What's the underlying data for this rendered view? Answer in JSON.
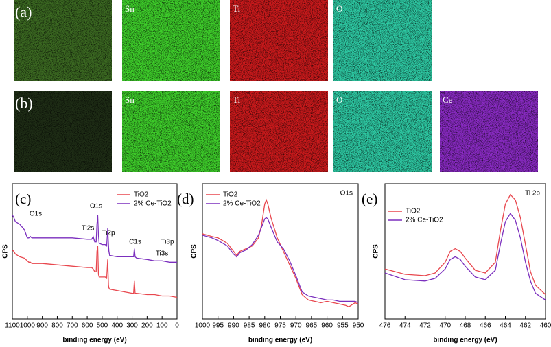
{
  "maps": [
    {
      "label": "(a)",
      "panels": [
        "Sn",
        "Ti",
        "O"
      ]
    },
    {
      "label": "(b)",
      "panels": [
        "Sn",
        "Ti",
        "O",
        "Ce"
      ]
    }
  ],
  "chart_data": [
    {
      "type": "line",
      "label": "(c)",
      "xlabel": "binding energy (eV)",
      "ylabel": "CPS",
      "x": [
        1100,
        1090,
        1080,
        1050,
        1020,
        1000,
        990,
        980,
        970,
        950,
        900,
        800,
        700,
        600,
        570,
        560,
        550,
        540,
        535,
        530,
        525,
        520,
        500,
        480,
        470,
        463,
        458,
        455,
        450,
        400,
        350,
        300,
        290,
        285,
        280,
        270,
        200,
        150,
        100,
        50,
        0
      ],
      "series": [
        {
          "name": "TiO2",
          "color": "#e8474e",
          "values": [
            51,
            50,
            48,
            46,
            45,
            43,
            42,
            42,
            41,
            41,
            41,
            40,
            39,
            38,
            38,
            37,
            35,
            35,
            50,
            54,
            33,
            31,
            31,
            31,
            30,
            44,
            25,
            23,
            22,
            21,
            20,
            19,
            19,
            28,
            19,
            19,
            18,
            18,
            17,
            17,
            16
          ]
        },
        {
          "name": "2% Ce-TiO2",
          "color": "#7b2fbe",
          "values": [
            77,
            75,
            72,
            70,
            66,
            60,
            60,
            61,
            60,
            60,
            60,
            60,
            60,
            59,
            59,
            61,
            57,
            57,
            70,
            77,
            62,
            56,
            55,
            55,
            54,
            67,
            55,
            50,
            47,
            46,
            46,
            46,
            46,
            52,
            46,
            45,
            44,
            43,
            43,
            42,
            42
          ]
        }
      ],
      "annotations": [
        "O1s",
        "O1s",
        "Ti2s",
        "Ti2p",
        "C1s",
        "Ti3p",
        "Ti3s"
      ],
      "xlim": [
        1100,
        0
      ],
      "xticks": [
        1100,
        1000,
        900,
        800,
        700,
        600,
        500,
        400,
        300,
        200,
        100,
        0
      ],
      "ylim": [
        0,
        100
      ]
    },
    {
      "type": "line",
      "label": "(d)",
      "title": "O1s",
      "xlabel": "binding energy (eV)",
      "ylabel": "CPS",
      "x": [
        1000,
        997,
        995,
        992,
        990,
        989,
        988,
        986,
        984,
        982,
        981,
        980,
        979.5,
        979,
        978,
        976,
        974,
        972,
        970,
        968,
        966,
        964,
        962,
        960,
        958,
        956,
        954,
        953,
        951,
        950
      ],
      "series": [
        {
          "name": "TiO2",
          "color": "#e8474e",
          "values": [
            63,
            61,
            60,
            56,
            50,
            47,
            50,
            52,
            54,
            60,
            70,
            85,
            88,
            85,
            75,
            60,
            50,
            40,
            30,
            18,
            14,
            13,
            12,
            13,
            12,
            11,
            10,
            9,
            12,
            11
          ]
        },
        {
          "name": "2% Ce-TiO2",
          "color": "#7b2fbe",
          "values": [
            62,
            60,
            58,
            54,
            48,
            46,
            49,
            51,
            55,
            62,
            68,
            74,
            75,
            74,
            68,
            57,
            52,
            43,
            32,
            20,
            17,
            16,
            15,
            14,
            14,
            13,
            13,
            13,
            13,
            12
          ]
        }
      ],
      "xlim": [
        1000,
        950
      ],
      "xticks": [
        1000,
        995,
        990,
        985,
        980,
        975,
        970,
        965,
        960,
        955,
        950
      ],
      "ylim": [
        0,
        100
      ]
    },
    {
      "type": "line",
      "label": "(e)",
      "title": "Ti 2p",
      "xlabel": "binding energy (eV)",
      "ylabel": "CPS",
      "x": [
        476,
        474,
        472,
        471,
        470,
        469.5,
        469,
        468.5,
        468,
        467,
        466,
        465,
        464.5,
        464,
        463.5,
        463,
        462.5,
        462,
        461.5,
        461,
        460
      ],
      "series": [
        {
          "name": "TiO2",
          "color": "#e8474e",
          "values": [
            37,
            33,
            32,
            34,
            42,
            50,
            52,
            50,
            45,
            36,
            34,
            42,
            65,
            85,
            92,
            88,
            75,
            55,
            35,
            25,
            18
          ]
        },
        {
          "name": "2% Ce-TiO2",
          "color": "#7b2fbe",
          "values": [
            34,
            29,
            28,
            30,
            37,
            44,
            46,
            44,
            39,
            31,
            29,
            36,
            55,
            72,
            78,
            73,
            60,
            42,
            28,
            19,
            14
          ]
        }
      ],
      "xlim": [
        476,
        460
      ],
      "xticks": [
        476,
        474,
        472,
        470,
        468,
        466,
        464,
        462,
        460
      ],
      "ylim": [
        0,
        100
      ]
    }
  ]
}
